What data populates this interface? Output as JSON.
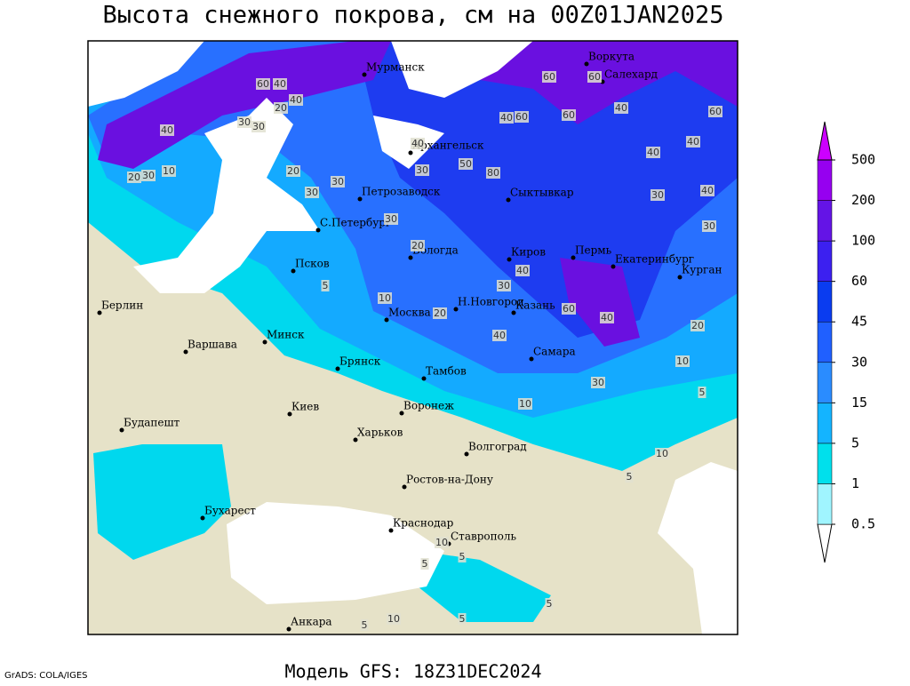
{
  "header": {
    "title": "Высота снежного покрова, см на 00Z01JAN2025"
  },
  "footer": {
    "model": "Модель GFS: 18Z31DEC2024",
    "credit": "GrADS: COLA/IGES"
  },
  "legend": {
    "levels": [
      0.5,
      1,
      5,
      15,
      30,
      45,
      60,
      100,
      200,
      500
    ],
    "colors": [
      "#ffffff",
      "#a0f5ff",
      "#00e0ec",
      "#14b4ff",
      "#2a8cff",
      "#2060ff",
      "#0a3cf0",
      "#3c20f0",
      "#6414e6",
      "#9600f0",
      "#cc00ff"
    ]
  },
  "cities": [
    "Мурманск",
    "Воркута",
    "Салехард",
    "Архангельск",
    "Петрозаводск",
    "С.Петербург",
    "Сыктывкар",
    "Вологда",
    "Киров",
    "Пермь",
    "Екатеринбург",
    "Курган",
    "Псков",
    "Москва",
    "Н.Новгород",
    "Казань",
    "Берлин",
    "Варшава",
    "Минск",
    "Брянск",
    "Тамбов",
    "Самара",
    "Киев",
    "Воронеж",
    "Будапешт",
    "Харьков",
    "Волгоград",
    "Ростов-на-Дону",
    "Бухарест",
    "Краснодар",
    "Ставрополь",
    "Анкара"
  ],
  "contour_labels": [
    60,
    40,
    20,
    40,
    40,
    30,
    30,
    20,
    30,
    10,
    30,
    30,
    40,
    60,
    40,
    60,
    60,
    40,
    60,
    50,
    80,
    30,
    60,
    40,
    30,
    40,
    30,
    20,
    40,
    10,
    20,
    20,
    40,
    30,
    40,
    60,
    40,
    20,
    30,
    10,
    10,
    5,
    30,
    5,
    10,
    5,
    10,
    5,
    5,
    10,
    5,
    5,
    5
  ]
}
